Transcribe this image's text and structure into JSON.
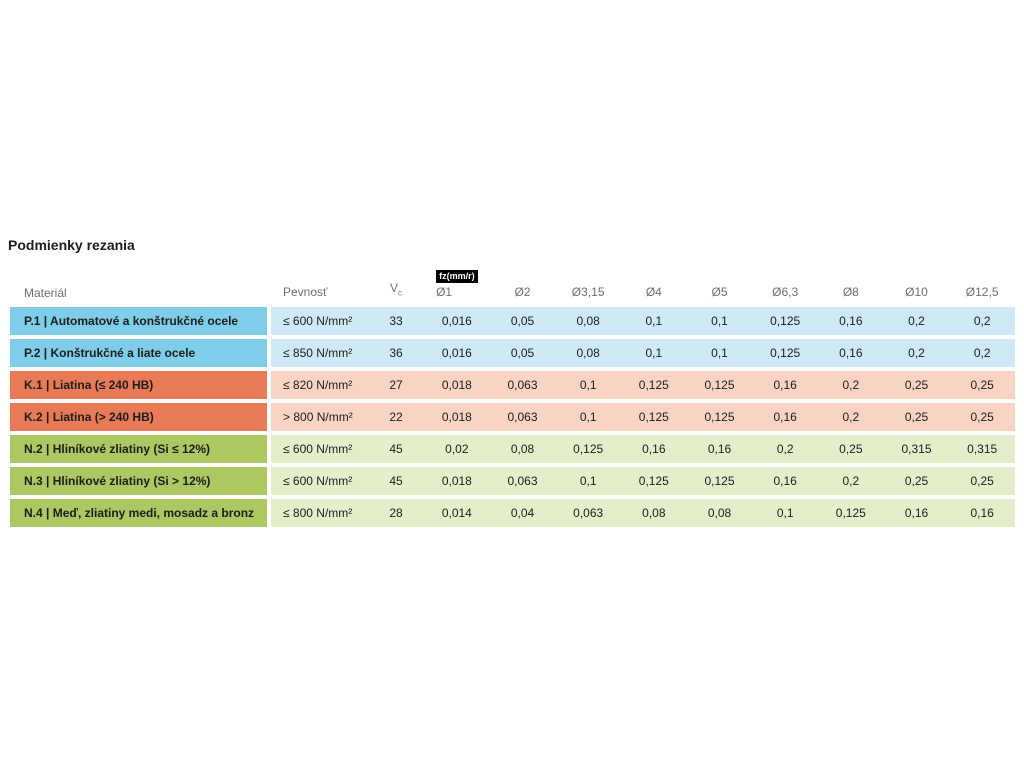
{
  "title": "Podmienky rezania",
  "table": {
    "badge": "fz(mm/r)",
    "headers": {
      "material": "Materiál",
      "strength": "Pevnosť",
      "vc_base": "V",
      "vc_sub": "c",
      "diameters": [
        "Ø1",
        "Ø2",
        "Ø3,15",
        "Ø4",
        "Ø5",
        "Ø6,3",
        "Ø8",
        "Ø10",
        "Ø12,5"
      ]
    },
    "rows": [
      {
        "group": "p",
        "material": "P.1 | Automatové a konštrukčné ocele",
        "strength": "≤ 600 N/mm²",
        "vc": "33",
        "fz": [
          "0,016",
          "0,05",
          "0,08",
          "0,1",
          "0,1",
          "0,125",
          "0,16",
          "0,2",
          "0,2"
        ]
      },
      {
        "group": "p",
        "material": "P.2 | Konštrukčné a liate ocele",
        "strength": "≤ 850 N/mm²",
        "vc": "36",
        "fz": [
          "0,016",
          "0,05",
          "0,08",
          "0,1",
          "0,1",
          "0,125",
          "0,16",
          "0,2",
          "0,2"
        ]
      },
      {
        "group": "k",
        "material": "K.1 | Liatina (≤ 240 HB)",
        "strength": "≤ 820 N/mm²",
        "vc": "27",
        "fz": [
          "0,018",
          "0,063",
          "0,1",
          "0,125",
          "0,125",
          "0,16",
          "0,2",
          "0,25",
          "0,25"
        ]
      },
      {
        "group": "k",
        "material": "K.2 | Liatina (> 240 HB)",
        "strength": "> 800 N/mm²",
        "vc": "22",
        "fz": [
          "0,018",
          "0,063",
          "0,1",
          "0,125",
          "0,125",
          "0,16",
          "0,2",
          "0,25",
          "0,25"
        ]
      },
      {
        "group": "n",
        "material": "N.2 | Hliníkové zliatiny (Si ≤ 12%)",
        "strength": "≤ 600 N/mm²",
        "vc": "45",
        "fz": [
          "0,02",
          "0,08",
          "0,125",
          "0,16",
          "0,16",
          "0,2",
          "0,25",
          "0,315",
          "0,315"
        ]
      },
      {
        "group": "n",
        "material": "N.3 | Hliníkové zliatiny (Si > 12%)",
        "strength": "≤ 600 N/mm²",
        "vc": "45",
        "fz": [
          "0,018",
          "0,063",
          "0,1",
          "0,125",
          "0,125",
          "0,16",
          "0,2",
          "0,25",
          "0,25"
        ]
      },
      {
        "group": "n",
        "material": "N.4 | Meď, zliatiny medi, mosadz a bronz",
        "strength": "≤ 800 N/mm²",
        "vc": "28",
        "fz": [
          "0,014",
          "0,04",
          "0,063",
          "0,08",
          "0,08",
          "0,1",
          "0,125",
          "0,16",
          "0,16"
        ]
      }
    ],
    "colors": {
      "groups": {
        "p": {
          "label": "#7ecde9",
          "band": "#cfeaf6"
        },
        "k": {
          "label": "#e87a57",
          "band": "#f9d4c5"
        },
        "n": {
          "label": "#abc862",
          "band": "#e5eecb"
        }
      },
      "badge_bg": "#000000",
      "badge_text": "#ffffff",
      "header_text": "#6f6f6e",
      "text": "#1d1d1b",
      "background": "#ffffff"
    }
  }
}
